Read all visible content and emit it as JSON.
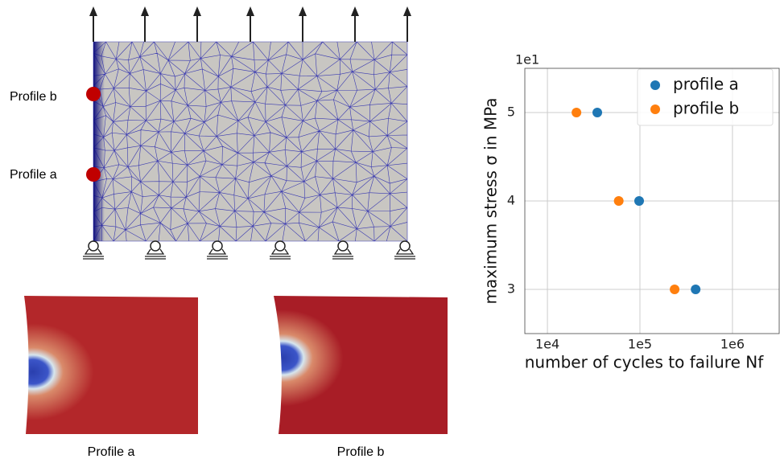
{
  "diagram": {
    "markers": [
      {
        "name": "Profile b"
      },
      {
        "name": "Profile a"
      }
    ]
  },
  "contour_panels": [
    {
      "caption": "Profile a"
    },
    {
      "caption": "Profile b"
    }
  ],
  "chart_data": {
    "type": "scatter",
    "xlabel": "number of cycles to failure Nf",
    "ylabel": "maximum stress σ in MPa",
    "y_offset_label": "1e1",
    "xscale": "log",
    "xlim": [
      5700,
      3200000
    ],
    "xticks": [
      {
        "value": 10000,
        "label": "1e4"
      },
      {
        "value": 100000,
        "label": "1e5"
      },
      {
        "value": 1000000,
        "label": "1e6"
      }
    ],
    "ylim": [
      2.5,
      5.5
    ],
    "yticks": [
      3,
      4,
      5
    ],
    "grid": true,
    "legend": "upper right",
    "series": [
      {
        "name": "profile a",
        "color": "#1f77b4",
        "x": [
          34600,
          98000,
          400000
        ],
        "values": [
          5,
          4,
          3
        ]
      },
      {
        "name": "profile b",
        "color": "#ff7f0e",
        "x": [
          20600,
          59000,
          237000
        ],
        "values": [
          5,
          4,
          3
        ]
      }
    ]
  }
}
